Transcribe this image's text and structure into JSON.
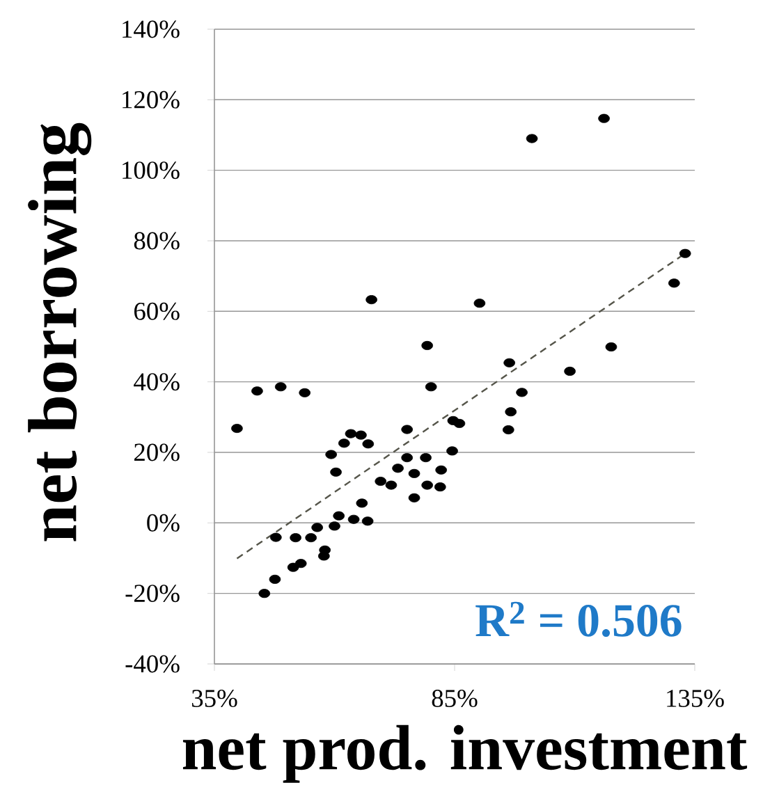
{
  "chart_data": {
    "type": "scatter",
    "xlabel": "net prod. investment",
    "ylabel": "net borrowing",
    "annotations": [
      "R$^{2}$ = 0.506"
    ],
    "xlim": [
      35,
      135
    ],
    "ylim": [
      -40,
      140
    ],
    "xticks": [
      {
        "value": 35,
        "label": "35%"
      },
      {
        "value": 85,
        "label": "85%"
      },
      {
        "value": 135,
        "label": "135%"
      }
    ],
    "yticks": [
      {
        "value": -40,
        "label": "-40%"
      },
      {
        "value": -20,
        "label": "-20%"
      },
      {
        "value": 0,
        "label": "0%"
      },
      {
        "value": 20,
        "label": "20%"
      },
      {
        "value": 40,
        "label": "40%"
      },
      {
        "value": 60,
        "label": "60%"
      },
      {
        "value": 80,
        "label": "80%"
      },
      {
        "value": 100,
        "label": "100%"
      },
      {
        "value": 120,
        "label": "120%"
      },
      {
        "value": 140,
        "label": "140%"
      }
    ],
    "grid": "y",
    "series": [
      {
        "color": "#000000",
        "marker": "circle",
        "x": [
          101.1,
          116.1,
          133,
          130.7,
          67.7,
          90.2,
          79.3,
          117.6,
          96.4,
          109,
          43.9,
          48.8,
          53.8,
          80.1,
          99,
          96.7,
          39.7,
          96.2,
          75.1,
          84.7,
          86,
          63.4,
          65.5,
          62,
          67,
          59.3,
          60.3,
          84.5,
          75.1,
          79,
          73.2,
          76.6,
          82.2,
          69.6,
          71.8,
          79.3,
          82,
          76.6,
          65.7,
          60.9,
          64,
          66.9,
          60,
          56.4,
          55.1,
          51.9,
          47.8,
          58,
          57.8,
          53,
          51.4,
          47.6,
          45.4
        ],
        "values": [
          109,
          114.7,
          76.4,
          68,
          63.3,
          62.3,
          50.3,
          49.9,
          45.4,
          43,
          37.4,
          38.6,
          36.9,
          38.6,
          37,
          31.5,
          26.8,
          26.4,
          26.5,
          29,
          28.2,
          25.3,
          24.9,
          22.6,
          22.4,
          19.4,
          14.4,
          20.4,
          18.5,
          18.5,
          15.5,
          14,
          15,
          11.8,
          10.7,
          10.7,
          10.2,
          7.1,
          5.6,
          2,
          1,
          0.5,
          -0.9,
          -1.3,
          -4.2,
          -4.2,
          -4.1,
          -7.7,
          -9.4,
          -11.5,
          -12.6,
          -16,
          -20
        ]
      },
      {
        "type": "line",
        "color": "#55554a",
        "line_style": "dashed",
        "x": [
          39.7,
          133
        ],
        "values": [
          -10.1,
          76.4
        ]
      }
    ]
  }
}
